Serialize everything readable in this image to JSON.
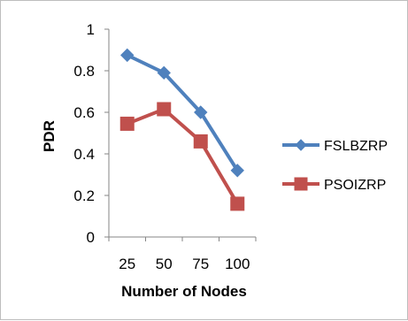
{
  "chart_data": {
    "type": "line",
    "categories": [
      "25",
      "50",
      "75",
      "100"
    ],
    "series": [
      {
        "name": "FSLBZRP",
        "values": [
          0.875,
          0.79,
          0.6,
          0.32
        ],
        "color": "#4f81bd",
        "marker": "diamond"
      },
      {
        "name": "PSOIZRP",
        "values": [
          0.545,
          0.615,
          0.46,
          0.16
        ],
        "color": "#c0504d",
        "marker": "square"
      }
    ],
    "xlabel": "Number of Nodes",
    "ylabel": "PDR",
    "ylim": [
      0,
      1
    ],
    "yticks": [
      "0",
      "0.2",
      "0.4",
      "0.6",
      "0.8",
      "1"
    ],
    "grid": false,
    "legend_position": "right"
  }
}
